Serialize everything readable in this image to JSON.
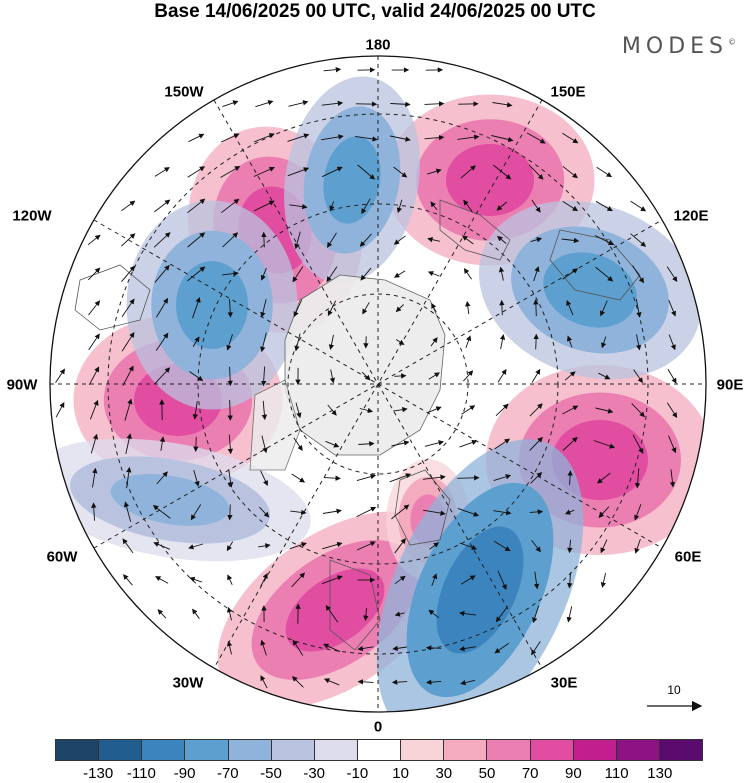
{
  "title": "Base 14/06/2025 00 UTC, valid 24/06/2025 00 UTC",
  "brand": "MODES",
  "brand_mark": "©",
  "map_labels": {
    "lon_180": "180",
    "lon_150W": "150W",
    "lon_150E": "150E",
    "lon_120W": "120W",
    "lon_120E": "120E",
    "lon_90W": "90W",
    "lon_90E": "90E",
    "lon_60W": "60W",
    "lon_60E": "60E",
    "lon_30W": "30W",
    "lon_30E": "30E",
    "lon_0": "0"
  },
  "reference_vector": {
    "value": "10"
  },
  "colorbar": {
    "colors": [
      "#1c4467",
      "#215d8f",
      "#3c84bd",
      "#5d9fcf",
      "#8fb3da",
      "#b9c3df",
      "#dcdcec",
      "#ffffff",
      "#f8d4d8",
      "#f3abbd",
      "#ec7fb2",
      "#e04da1",
      "#c21f8e",
      "#8e1283",
      "#5b0b6e"
    ],
    "tick_labels": [
      "-130",
      "-110",
      "-90",
      "-70",
      "-50",
      "-30",
      "-10",
      "10",
      "30",
      "50",
      "70",
      "90",
      "110",
      "130"
    ]
  },
  "anomaly_centers": [
    {
      "sign": "positive",
      "level": 90,
      "region": "150E"
    },
    {
      "sign": "positive",
      "level": 90,
      "region": "150W-120W"
    },
    {
      "sign": "positive",
      "level": 70,
      "region": "90W"
    },
    {
      "sign": "positive",
      "level": 90,
      "region": "75E"
    },
    {
      "sign": "positive",
      "level": 90,
      "region": "30W"
    },
    {
      "sign": "positive",
      "level": 50,
      "region": "10E"
    },
    {
      "sign": "negative",
      "level": -70,
      "region": "170W"
    },
    {
      "sign": "negative",
      "level": -70,
      "region": "120W-100W"
    },
    {
      "sign": "negative",
      "level": -70,
      "region": "110E"
    },
    {
      "sign": "negative",
      "level": -50,
      "region": "65W"
    },
    {
      "sign": "negative",
      "level": -90,
      "region": "25E"
    }
  ]
}
